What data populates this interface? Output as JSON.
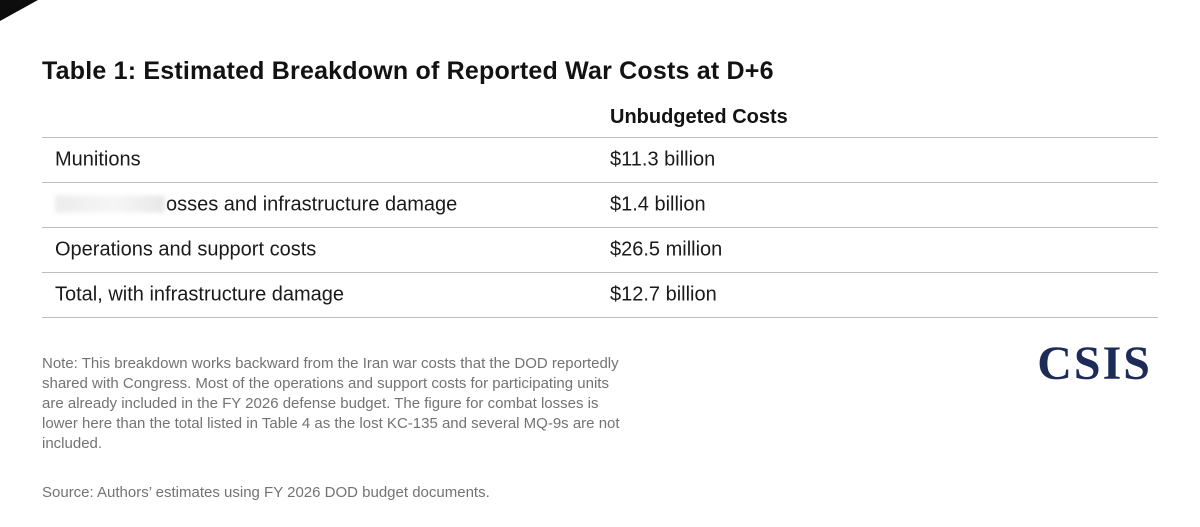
{
  "title": "Table 1: Estimated Breakdown of Reported War Costs at D+6",
  "table": {
    "value_header": "Unbudgeted Costs",
    "rows": [
      {
        "label": "Munitions",
        "value": "$11.3 billion"
      },
      {
        "label": "osses and infrastructure damage",
        "value": "$1.4 billion",
        "redacted_prefix": true
      },
      {
        "label": "Operations and support costs",
        "value": "$26.5 million"
      },
      {
        "label": "Total, with infrastructure damage",
        "value": "$12.7 billion"
      }
    ]
  },
  "note": "Note: This breakdown works backward from the Iran war costs that the DOD reportedly shared with Congress. Most of the operations and support costs for participating units are already included in the FY 2026 defense budget. The figure for combat losses is lower here than the total listed in Table 4 as the lost KC-135 and several MQ-9s are not included.",
  "source": "Source: Authors’ estimates using FY 2026 DOD budget documents.",
  "logo_text": "CSIS",
  "colors": {
    "logo_navy": "#1d2b57",
    "note_gray": "#737373",
    "rule_gray": "#bdbdbd",
    "title_black": "#121212"
  }
}
